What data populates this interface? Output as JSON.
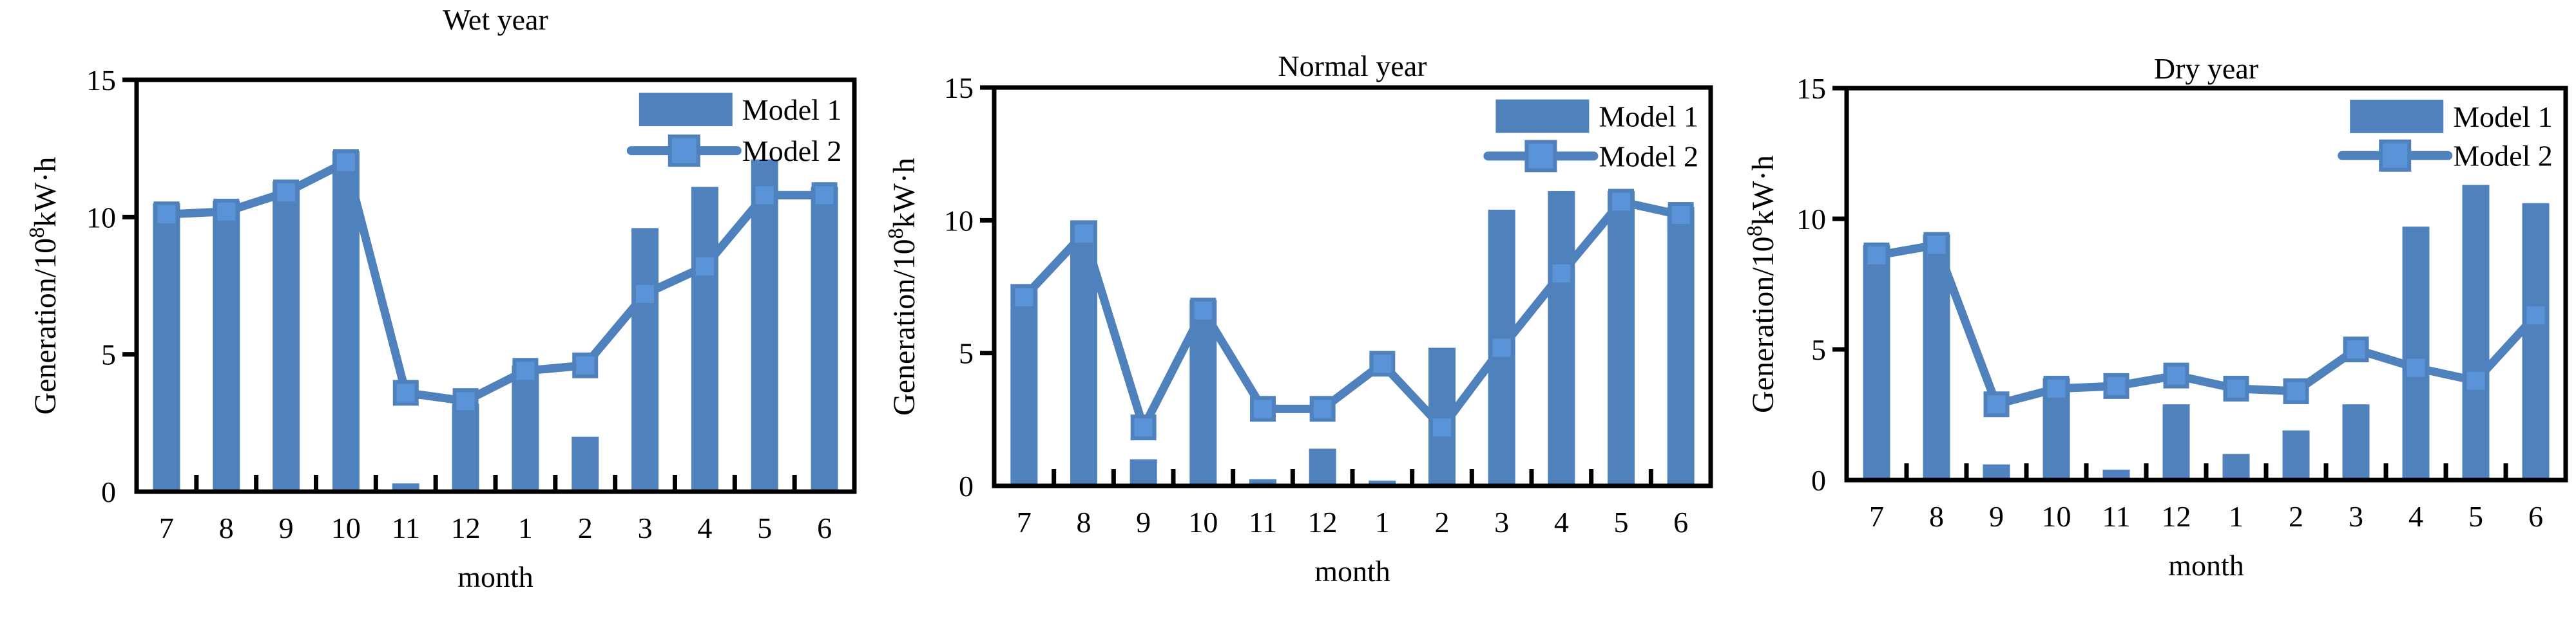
{
  "figure_colors": {
    "bar_fill": "#4f81bd",
    "line_stroke": "#4f81bd",
    "marker_fill": "#5b93d8",
    "marker_border": "#4f81bd",
    "axis": "#000000",
    "text": "#000000",
    "background": "#ffffff"
  },
  "chart_data": [
    {
      "type": "bar+line",
      "title": "Wet year",
      "xlabel": "month",
      "ylabel": "Generation/10⁸kW·h",
      "ylabel_parts": {
        "base": "Generation/10",
        "sup": "8",
        "unit": "kW·h"
      },
      "categories": [
        "7",
        "8",
        "9",
        "10",
        "11",
        "12",
        "1",
        "2",
        "3",
        "4",
        "5",
        "6"
      ],
      "ylim": [
        0,
        15
      ],
      "yticks": [
        0,
        5,
        10,
        15
      ],
      "grid": false,
      "legend_position": "top-right-inside",
      "series": [
        {
          "name": "Model 1",
          "type": "bar",
          "values": [
            10.5,
            10.6,
            11.3,
            12.4,
            0.3,
            3.2,
            4.6,
            2.0,
            9.6,
            11.1,
            12.1,
            11.1
          ]
        },
        {
          "name": "Model 2",
          "type": "line",
          "values": [
            10.1,
            10.2,
            10.9,
            12.0,
            3.6,
            3.3,
            4.4,
            4.6,
            7.2,
            8.2,
            10.8,
            10.8
          ]
        }
      ]
    },
    {
      "type": "bar+line",
      "title": "Normal year",
      "xlabel": "month",
      "ylabel": "Generation/10⁸kW·h",
      "ylabel_parts": {
        "base": "Generation/10",
        "sup": "8",
        "unit": "kW·h"
      },
      "categories": [
        "7",
        "8",
        "9",
        "10",
        "11",
        "12",
        "1",
        "2",
        "3",
        "4",
        "5",
        "6"
      ],
      "ylim": [
        0,
        15
      ],
      "yticks": [
        0,
        5,
        10,
        15
      ],
      "grid": false,
      "legend_position": "top-right-inside",
      "series": [
        {
          "name": "Model 1",
          "type": "bar",
          "values": [
            7.6,
            10.0,
            1.0,
            7.0,
            0.25,
            1.4,
            0.2,
            5.2,
            10.4,
            11.1,
            11.1,
            10.5
          ]
        },
        {
          "name": "Model 2",
          "type": "line",
          "values": [
            7.1,
            9.5,
            2.2,
            6.6,
            2.9,
            2.9,
            4.6,
            2.2,
            5.2,
            8.0,
            10.7,
            10.2
          ]
        }
      ]
    },
    {
      "type": "bar+line",
      "title": "Dry year",
      "xlabel": "month",
      "ylabel": "Generation/10⁸kW·h",
      "ylabel_parts": {
        "base": "Generation/10",
        "sup": "8",
        "unit": "kW·h"
      },
      "categories": [
        "7",
        "8",
        "9",
        "10",
        "11",
        "12",
        "1",
        "2",
        "3",
        "4",
        "5",
        "6"
      ],
      "ylim": [
        0,
        15
      ],
      "yticks": [
        0,
        5,
        10,
        15
      ],
      "grid": false,
      "legend_position": "top-right-inside",
      "series": [
        {
          "name": "Model 1",
          "type": "bar",
          "values": [
            9.0,
            9.4,
            0.6,
            3.9,
            0.4,
            2.9,
            1.0,
            1.9,
            2.9,
            9.7,
            11.3,
            10.6
          ]
        },
        {
          "name": "Model 2",
          "type": "line",
          "values": [
            8.6,
            9.0,
            2.9,
            3.5,
            3.6,
            4.0,
            3.5,
            3.4,
            5.0,
            4.3,
            3.8,
            6.3
          ]
        }
      ]
    }
  ]
}
